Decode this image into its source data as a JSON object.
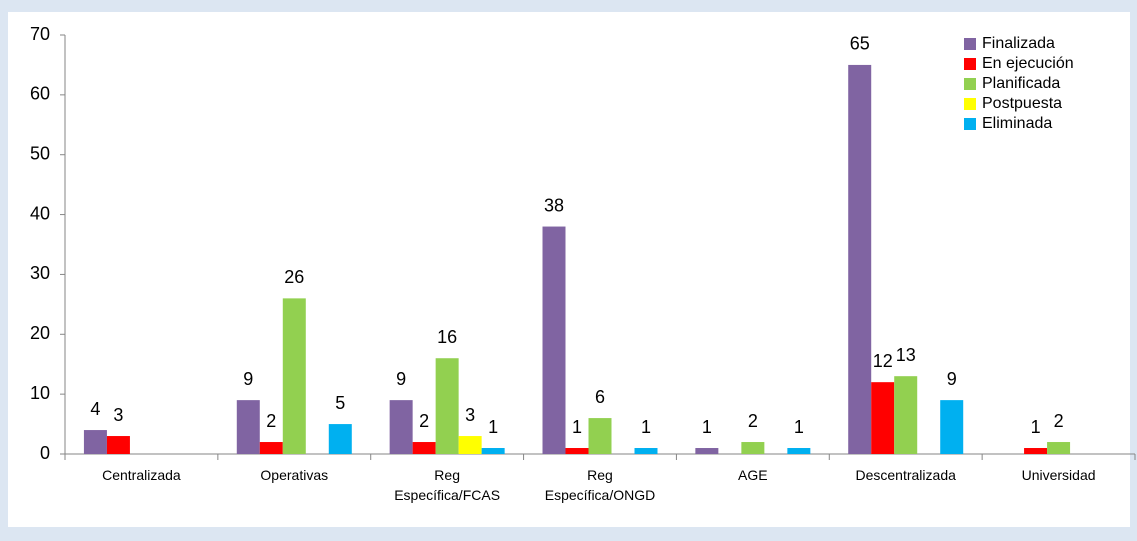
{
  "chart_data": {
    "type": "bar",
    "categories": [
      "Centralizada",
      "Operativas",
      "Reg Específica/FCAS",
      "Reg Específica/ONGD",
      "AGE",
      "Descentralizada",
      "Universidad"
    ],
    "series": [
      {
        "name": "Finalizada",
        "color": "#8064a2",
        "values": [
          4,
          9,
          9,
          38,
          1,
          65,
          null
        ]
      },
      {
        "name": "En ejecución",
        "color": "#ff0000",
        "values": [
          3,
          2,
          2,
          1,
          null,
          12,
          1
        ]
      },
      {
        "name": "Planificada",
        "color": "#92d050",
        "values": [
          null,
          26,
          16,
          6,
          2,
          13,
          2
        ]
      },
      {
        "name": "Postpuesta",
        "color": "#ffff00",
        "values": [
          null,
          null,
          3,
          null,
          null,
          null,
          null
        ]
      },
      {
        "name": "Eliminada",
        "color": "#00b0f0",
        "values": [
          null,
          5,
          1,
          1,
          1,
          9,
          null
        ]
      }
    ],
    "ylim": [
      0,
      70
    ],
    "yticks": [
      0,
      10,
      20,
      30,
      40,
      50,
      60,
      70
    ],
    "grid": false,
    "legend": "top-right"
  }
}
